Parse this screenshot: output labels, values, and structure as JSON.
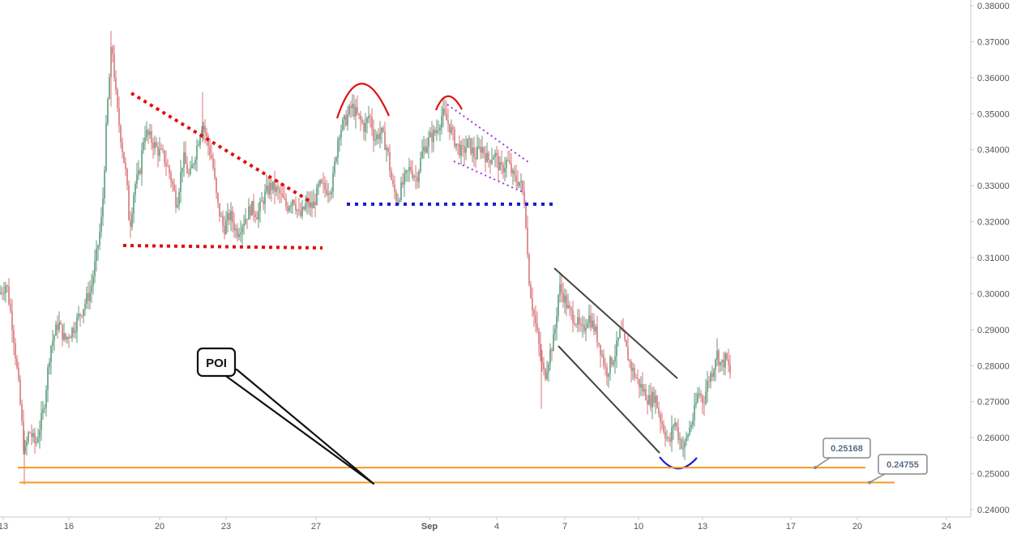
{
  "chart_data": {
    "type": "candlestick",
    "y_axis_side": "right",
    "ylim": [
      0.2385,
      0.3805
    ],
    "y_ticks": [
      "0.38000",
      "0.37000",
      "0.36000",
      "0.35000",
      "0.34000",
      "0.33000",
      "0.32000",
      "0.31000",
      "0.30000",
      "0.29000",
      "0.28000",
      "0.27000",
      "0.26000",
      "0.25000",
      "0.24000"
    ],
    "x_ticks": [
      "13",
      "16",
      "20",
      "23",
      "27",
      "Sep",
      "4",
      "7",
      "10",
      "13",
      "17",
      "20",
      "24"
    ],
    "grid": false,
    "colors": {
      "up": "#5b9a7d",
      "down": "#d9767a",
      "axis": "#c8c8c8",
      "tick_text": "#555555"
    },
    "price_path": [
      [
        0,
        0.3
      ],
      [
        8,
        0.303
      ],
      [
        16,
        0.29
      ],
      [
        24,
        0.272
      ],
      [
        30,
        0.255
      ],
      [
        36,
        0.262
      ],
      [
        44,
        0.258
      ],
      [
        54,
        0.268
      ],
      [
        62,
        0.285
      ],
      [
        72,
        0.292
      ],
      [
        80,
        0.287
      ],
      [
        92,
        0.291
      ],
      [
        102,
        0.296
      ],
      [
        112,
        0.301
      ],
      [
        120,
        0.312
      ],
      [
        126,
        0.322
      ],
      [
        132,
        0.35
      ],
      [
        138,
        0.37
      ],
      [
        144,
        0.352
      ],
      [
        150,
        0.342
      ],
      [
        156,
        0.332
      ],
      [
        160,
        0.318
      ],
      [
        166,
        0.33
      ],
      [
        172,
        0.333
      ],
      [
        178,
        0.345
      ],
      [
        186,
        0.343
      ],
      [
        194,
        0.34
      ],
      [
        202,
        0.338
      ],
      [
        210,
        0.333
      ],
      [
        218,
        0.325
      ],
      [
        226,
        0.338
      ],
      [
        234,
        0.332
      ],
      [
        242,
        0.34
      ],
      [
        250,
        0.348
      ],
      [
        256,
        0.342
      ],
      [
        262,
        0.337
      ],
      [
        268,
        0.325
      ],
      [
        276,
        0.318
      ],
      [
        284,
        0.322
      ],
      [
        292,
        0.317
      ],
      [
        300,
        0.32
      ],
      [
        310,
        0.324
      ],
      [
        318,
        0.322
      ],
      [
        326,
        0.327
      ],
      [
        334,
        0.33
      ],
      [
        344,
        0.328
      ],
      [
        354,
        0.324
      ],
      [
        362,
        0.327
      ],
      [
        370,
        0.321
      ],
      [
        378,
        0.325
      ],
      [
        386,
        0.324
      ],
      [
        394,
        0.33
      ],
      [
        402,
        0.329
      ],
      [
        410,
        0.33
      ],
      [
        418,
        0.345
      ],
      [
        426,
        0.348
      ],
      [
        434,
        0.352
      ],
      [
        442,
        0.349
      ],
      [
        450,
        0.346
      ],
      [
        456,
        0.35
      ],
      [
        462,
        0.343
      ],
      [
        470,
        0.345
      ],
      [
        478,
        0.34
      ],
      [
        484,
        0.33
      ],
      [
        490,
        0.326
      ],
      [
        498,
        0.331
      ],
      [
        506,
        0.335
      ],
      [
        514,
        0.332
      ],
      [
        522,
        0.34
      ],
      [
        530,
        0.343
      ],
      [
        538,
        0.345
      ],
      [
        546,
        0.35
      ],
      [
        554,
        0.347
      ],
      [
        562,
        0.342
      ],
      [
        570,
        0.339
      ],
      [
        578,
        0.342
      ],
      [
        586,
        0.338
      ],
      [
        594,
        0.341
      ],
      [
        602,
        0.337
      ],
      [
        610,
        0.339
      ],
      [
        618,
        0.334
      ],
      [
        626,
        0.337
      ],
      [
        634,
        0.332
      ],
      [
        642,
        0.331
      ],
      [
        648,
        0.325
      ],
      [
        652,
        0.306
      ],
      [
        656,
        0.298
      ],
      [
        662,
        0.29
      ],
      [
        668,
        0.281
      ],
      [
        672,
        0.277
      ],
      [
        678,
        0.283
      ],
      [
        684,
        0.288
      ],
      [
        690,
        0.302
      ],
      [
        696,
        0.299
      ],
      [
        702,
        0.295
      ],
      [
        710,
        0.293
      ],
      [
        718,
        0.289
      ],
      [
        726,
        0.294
      ],
      [
        734,
        0.29
      ],
      [
        742,
        0.284
      ],
      [
        748,
        0.278
      ],
      [
        754,
        0.281
      ],
      [
        760,
        0.284
      ],
      [
        766,
        0.29
      ],
      [
        772,
        0.285
      ],
      [
        778,
        0.28
      ],
      [
        786,
        0.276
      ],
      [
        794,
        0.273
      ],
      [
        802,
        0.27
      ],
      [
        808,
        0.272
      ],
      [
        814,
        0.266
      ],
      [
        820,
        0.262
      ],
      [
        826,
        0.258
      ],
      [
        832,
        0.265
      ],
      [
        838,
        0.26
      ],
      [
        844,
        0.257
      ],
      [
        850,
        0.262
      ],
      [
        856,
        0.266
      ],
      [
        862,
        0.273
      ],
      [
        868,
        0.27
      ],
      [
        874,
        0.276
      ],
      [
        880,
        0.279
      ],
      [
        884,
        0.284
      ],
      [
        890,
        0.28
      ],
      [
        896,
        0.282
      ],
      [
        902,
        0.277
      ]
    ],
    "horizontal_levels": [
      {
        "label": "0.25168",
        "value": 0.25168,
        "color": "#f59a23"
      },
      {
        "label": "0.24755",
        "value": 0.24755,
        "color": "#f59a23"
      }
    ],
    "annotations": {
      "poi": "POI"
    }
  }
}
